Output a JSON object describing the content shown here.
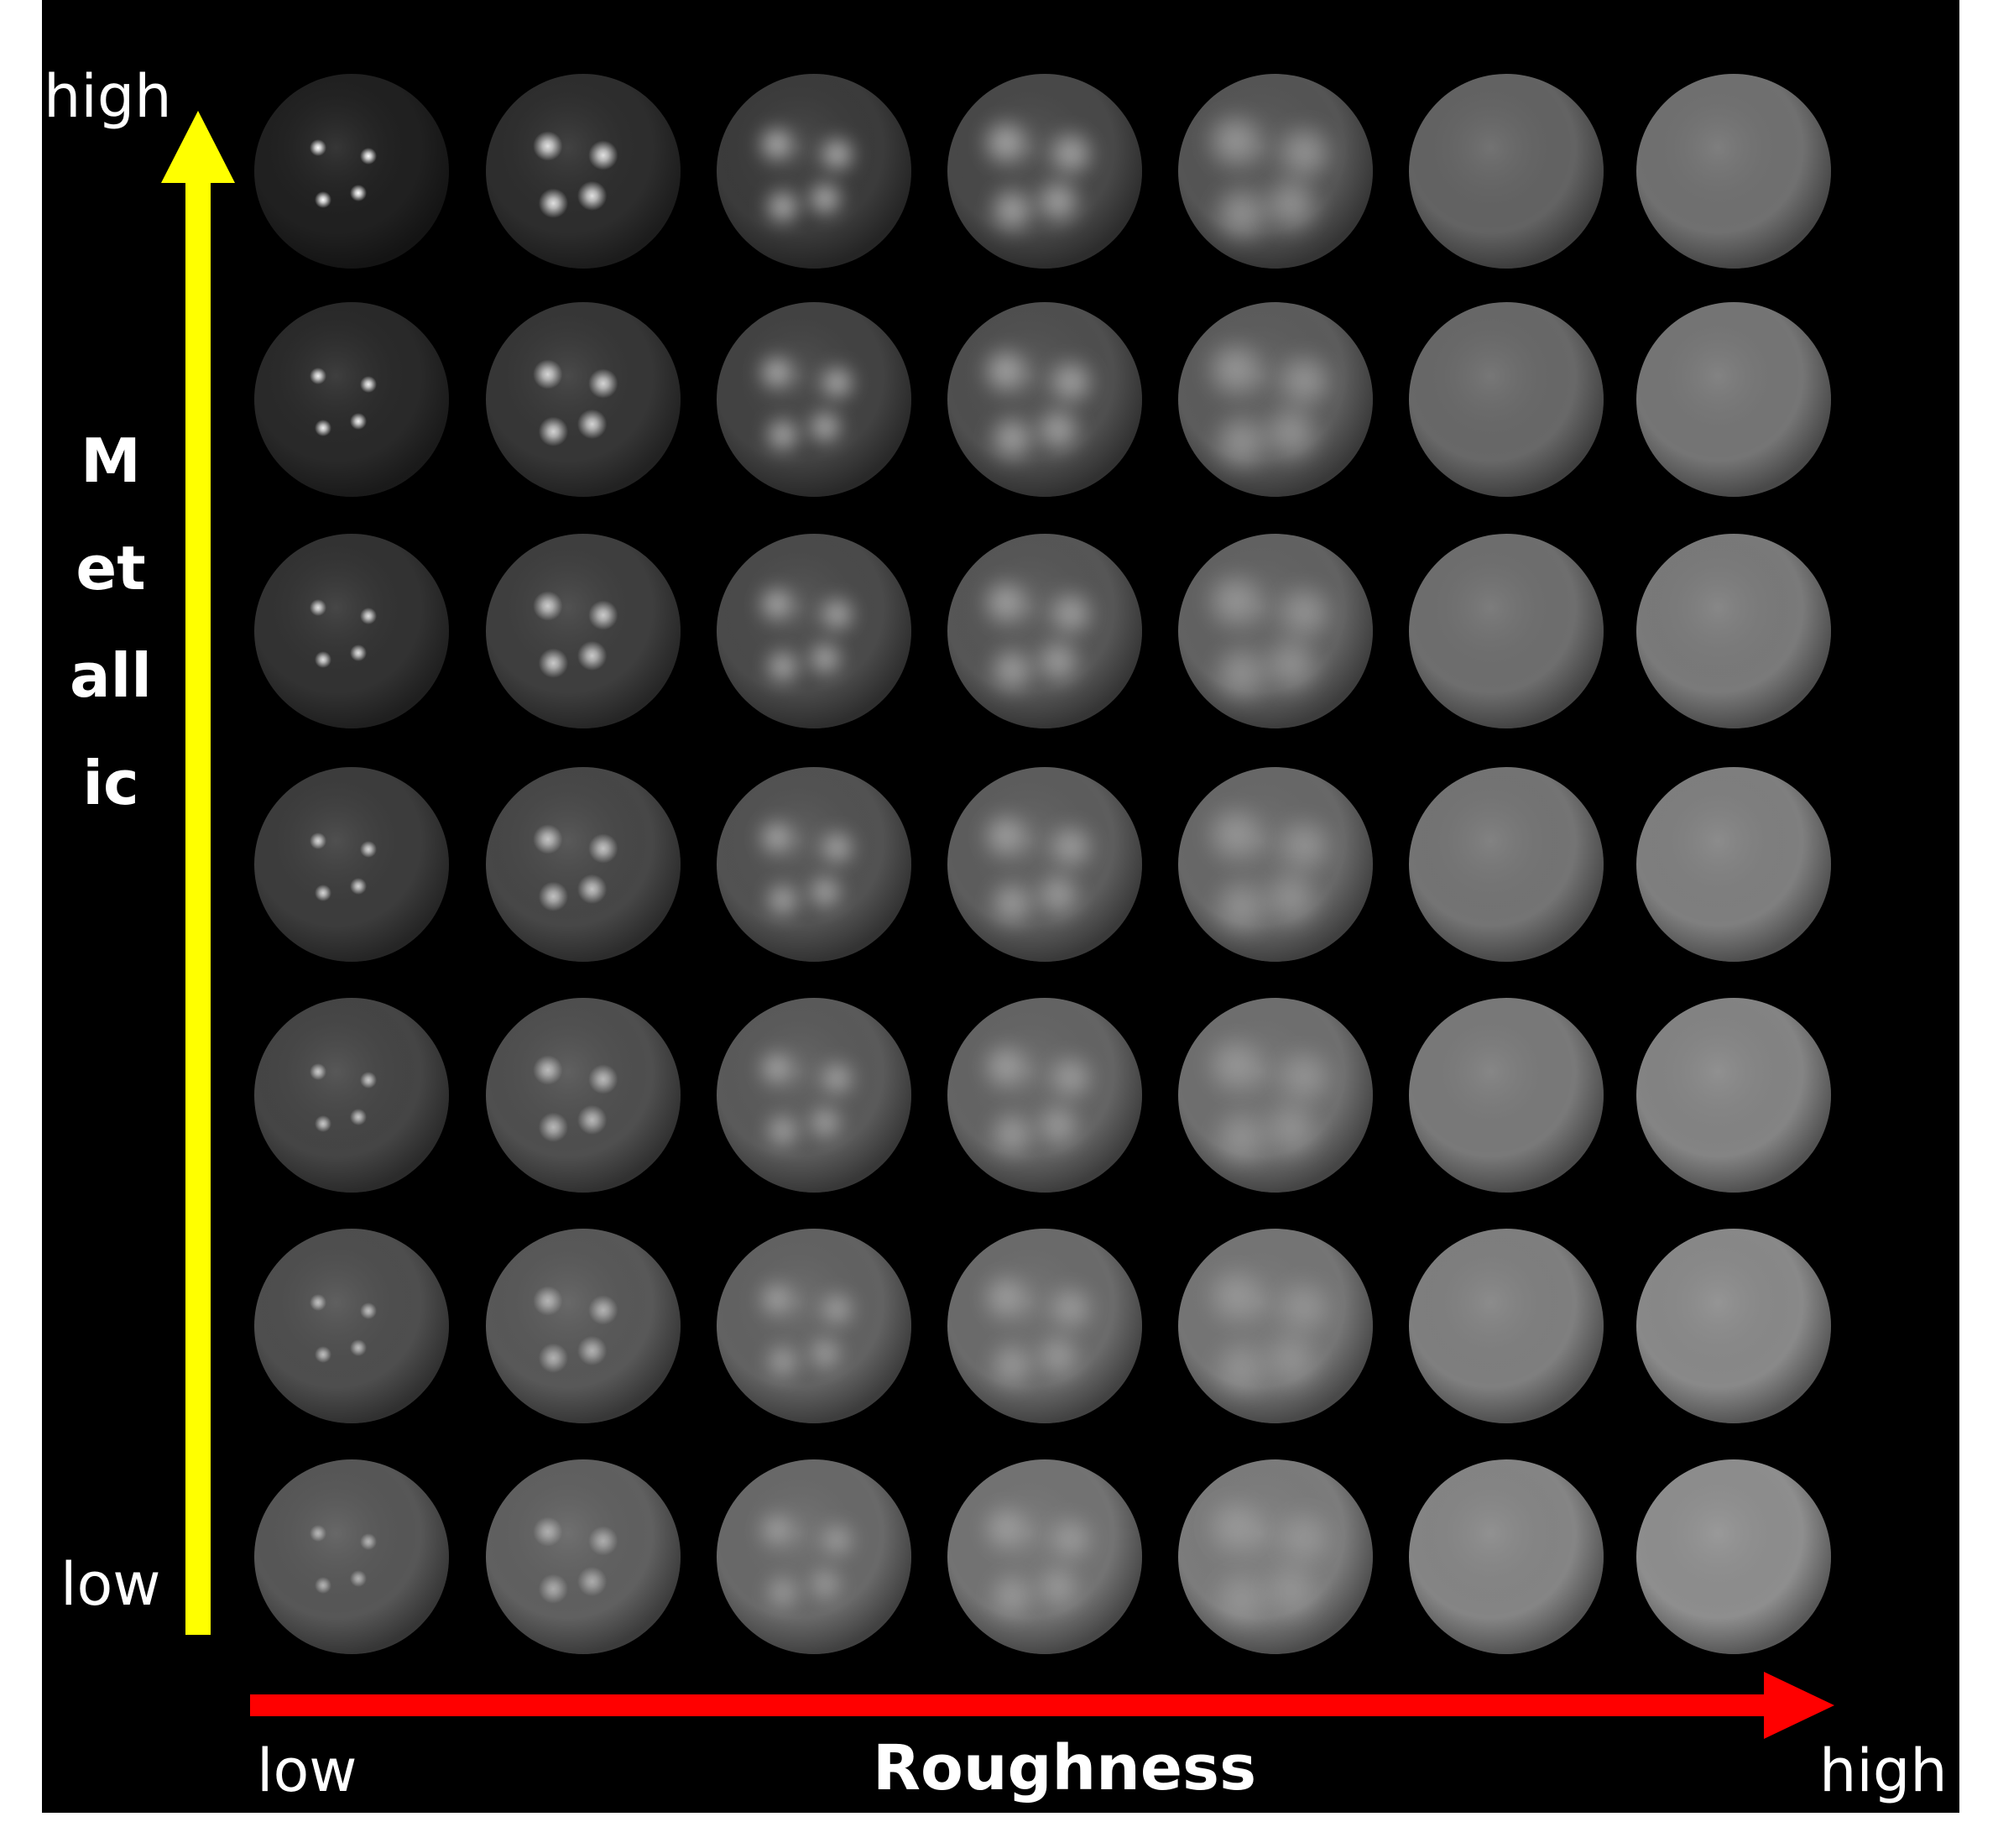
{
  "labels": {
    "y_high": "high",
    "y_low": "low",
    "y_title": "Metallic",
    "x_low": "low",
    "x_title": "Roughness",
    "x_high": "high"
  },
  "colors": {
    "background": "#000000",
    "metallic_arrow": "#ffff00",
    "roughness_arrow": "#ff0000",
    "text": "#ffffff"
  },
  "grid": {
    "rows": 7,
    "columns": 7,
    "row_order": "top = high metallic, bottom = low metallic",
    "column_order": "left = low roughness, right = high roughness",
    "highlights_per_sphere": 4
  }
}
